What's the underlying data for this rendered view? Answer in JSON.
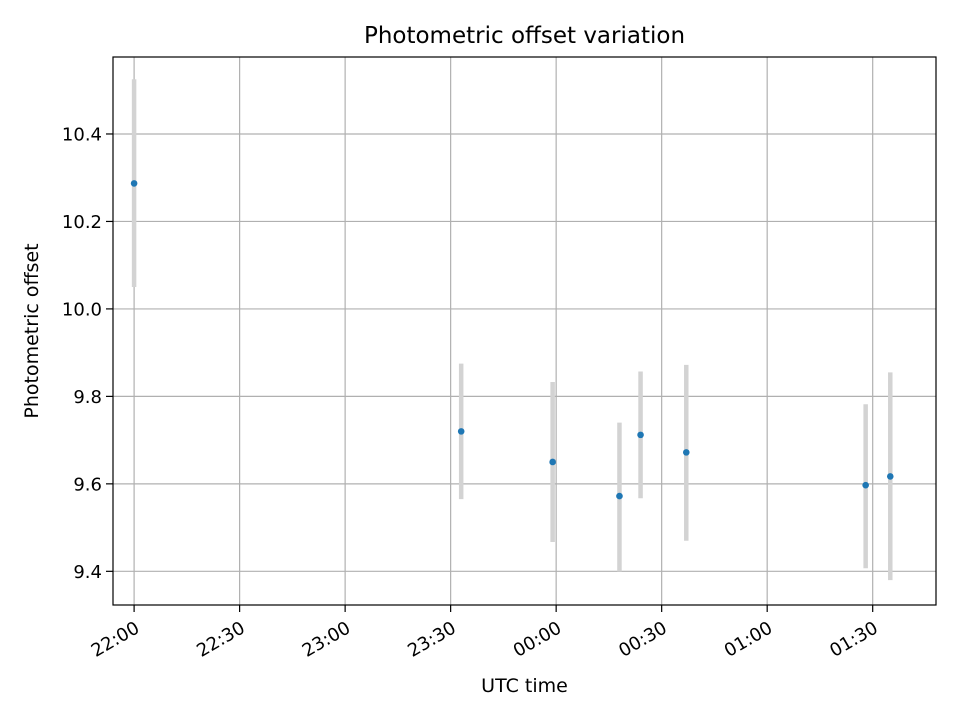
{
  "chart_data": {
    "type": "scatter",
    "title": "Photometric offset variation",
    "xlabel": "UTC time",
    "ylabel": "Photometric offset",
    "x_axis_type": "time",
    "xlim": [
      "21:54",
      "01:48"
    ],
    "ylim": [
      9.323,
      10.576
    ],
    "xticks": [
      "22:00",
      "22:30",
      "23:00",
      "23:30",
      "00:00",
      "00:30",
      "01:00",
      "01:30"
    ],
    "yticks": [
      9.4,
      9.6,
      9.8,
      10.0,
      10.2,
      10.4
    ],
    "ytick_labels": [
      "9.4",
      "9.6",
      "9.8",
      "10.0",
      "10.2",
      "10.4"
    ],
    "grid": true,
    "series": [
      {
        "points": [
          {
            "x": "22:00",
            "y": 10.287,
            "err_low": 10.05,
            "err_high": 10.525
          },
          {
            "x": "23:33",
            "y": 9.72,
            "err_low": 9.565,
            "err_high": 9.875
          },
          {
            "x": "23:59",
            "y": 9.65,
            "err_low": 9.467,
            "err_high": 9.833
          },
          {
            "x": "00:18",
            "y": 9.572,
            "err_low": 9.4,
            "err_high": 9.74
          },
          {
            "x": "00:24",
            "y": 9.712,
            "err_low": 9.567,
            "err_high": 9.857
          },
          {
            "x": "00:37",
            "y": 9.672,
            "err_low": 9.47,
            "err_high": 9.872
          },
          {
            "x": "01:28",
            "y": 9.597,
            "err_low": 9.407,
            "err_high": 9.782
          },
          {
            "x": "01:35",
            "y": 9.617,
            "err_low": 9.38,
            "err_high": 9.855
          }
        ]
      }
    ],
    "colors": {
      "marker": "#1f77b4",
      "errorbar": "#d3d3d3",
      "grid": "#b0b0b0",
      "axes": "#000000"
    }
  }
}
